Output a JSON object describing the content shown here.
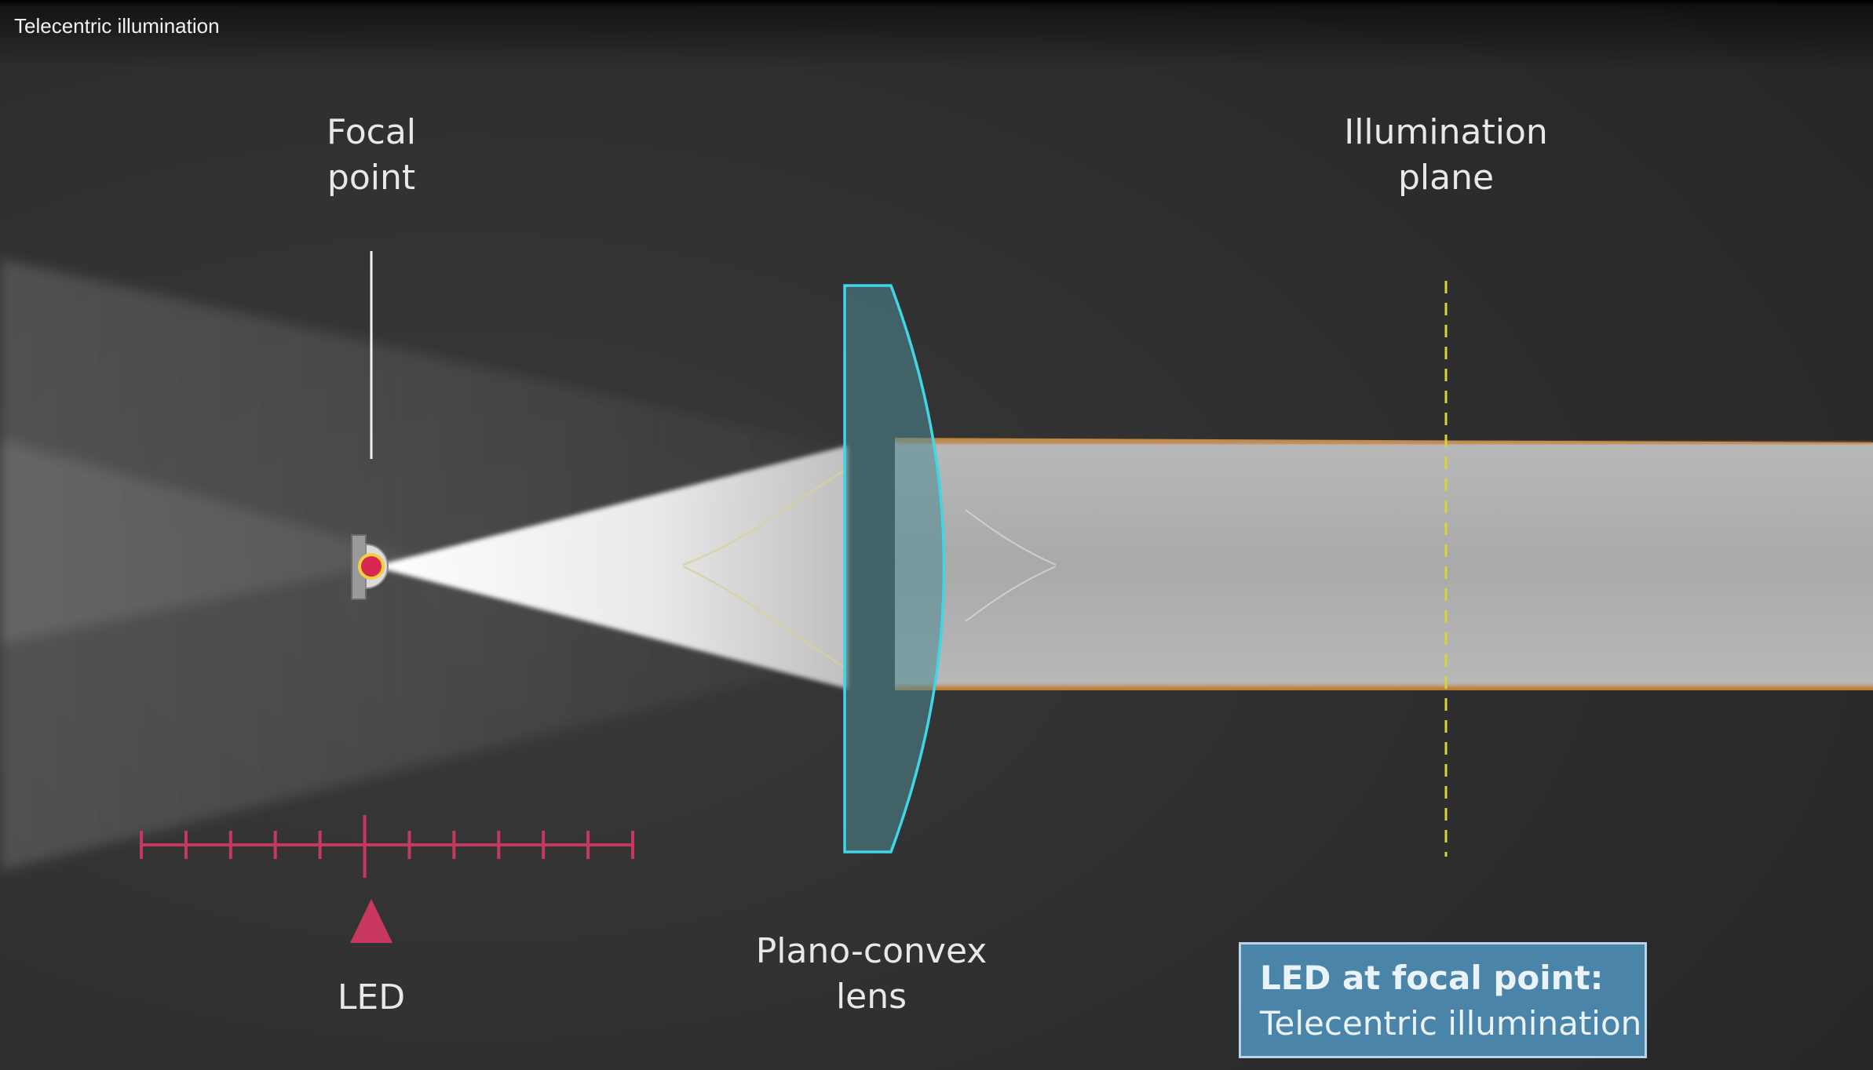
{
  "window": {
    "title": "Telecentric illumination"
  },
  "diagram": {
    "focal_point_label": [
      "Focal",
      "point"
    ],
    "illumination_plane_label": [
      "Illumination",
      "plane"
    ],
    "lens_label": [
      "Plano-convex",
      "lens"
    ],
    "led_label": "LED",
    "info_box": {
      "heading": "LED at focal point:",
      "subtitle": "Telecentric illumination"
    },
    "ruler": {
      "tick_count": 11,
      "led_tick_index": 5
    },
    "colors": {
      "background": "#2b2b2b",
      "lens_outline": "#3fd6e6",
      "lens_fill": "#4c8a93",
      "ruler": "#c8385e",
      "led": "#d9284f",
      "plane_dash": "#d8d43a",
      "beam_edge": "#d07a2a",
      "info_box": "#4a84a8"
    }
  }
}
